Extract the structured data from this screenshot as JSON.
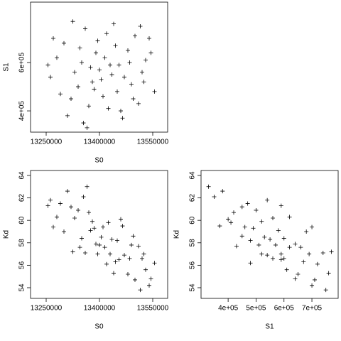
{
  "chart_data": [
    {
      "type": "scatter",
      "x_label": "S0",
      "y_label": "S1",
      "x": [
        13262000,
        13300000,
        13320000,
        13350000,
        13380000,
        13400000,
        13420000,
        13450000,
        13480000,
        13520000,
        13540000,
        13280000,
        13310000,
        13340000,
        13360000,
        13370000,
        13390000,
        13410000,
        13430000,
        13440000,
        13460000,
        13470000,
        13490000,
        13500000,
        13510000,
        13530000,
        13555000,
        13270000,
        13290000,
        13330000,
        13345000,
        13355000,
        13375000,
        13385000,
        13395000,
        13405000,
        13415000,
        13425000,
        13435000,
        13445000,
        13455000,
        13465000,
        13485000,
        13495000,
        13515000,
        13525000,
        13365000,
        13325000,
        13545000,
        13255000
      ],
      "y": [
        540000,
        680000,
        450000,
        600000,
        520000,
        570000,
        720000,
        480000,
        650000,
        560000,
        700000,
        620000,
        380000,
        500000,
        740000,
        420000,
        640000,
        460000,
        590000,
        760000,
        400000,
        540000,
        510000,
        710000,
        430000,
        610000,
        480000,
        700000,
        470000,
        560000,
        660000,
        350000,
        580000,
        490000,
        690000,
        530000,
        620000,
        410000,
        550000,
        670000,
        590000,
        370000,
        600000,
        450000,
        750000,
        520000,
        330000,
        770000,
        640000,
        590000
      ],
      "xlim": [
        13206000,
        13592000
      ],
      "ylim": [
        312000,
        850000
      ],
      "xticks": [
        13250000,
        13400000,
        13550000
      ],
      "yticks": [
        {
          "value": 400000,
          "label": "4e+05"
        },
        {
          "value": 600000,
          "label": "6e+05"
        }
      ]
    },
    {
      "type": "scatter",
      "x_label": "S0",
      "y_label": "Kd",
      "x": [
        13262000,
        13300000,
        13320000,
        13350000,
        13380000,
        13400000,
        13420000,
        13450000,
        13480000,
        13520000,
        13540000,
        13280000,
        13310000,
        13340000,
        13360000,
        13370000,
        13390000,
        13410000,
        13430000,
        13440000,
        13460000,
        13470000,
        13490000,
        13500000,
        13510000,
        13530000,
        13555000,
        13270000,
        13290000,
        13330000,
        13345000,
        13355000,
        13375000,
        13385000,
        13395000,
        13405000,
        13415000,
        13425000,
        13435000,
        13445000,
        13455000,
        13465000,
        13485000,
        13495000,
        13515000,
        13525000,
        13365000,
        13325000,
        13545000,
        13255000
      ],
      "y": [
        61.8,
        59.0,
        61.2,
        58.4,
        59.9,
        57.8,
        56.1,
        58.2,
        55.2,
        56.6,
        54.2,
        60.3,
        62.6,
        60.9,
        57.1,
        60.7,
        57.9,
        59.4,
        57.0,
        55.3,
        60.1,
        56.9,
        57.8,
        54.7,
        57.7,
        55.6,
        56.2,
        59.4,
        61.5,
        60.2,
        57.6,
        62.1,
        59.1,
        59.3,
        57.0,
        58.5,
        57.6,
        59.8,
        58.3,
        56.3,
        56.5,
        59.5,
        56.6,
        58.6,
        53.8,
        57.0,
        63.0,
        57.2,
        54.8,
        61.3
      ],
      "xlim": [
        13206000,
        13592000
      ],
      "ylim": [
        53.05,
        64.44
      ],
      "xticks": [
        13250000,
        13400000,
        13550000
      ],
      "yticks": [
        54,
        56,
        58,
        60,
        62,
        64
      ]
    },
    {
      "type": "scatter",
      "x_label": "S1",
      "y_label": "Kd",
      "x": [
        540000,
        680000,
        450000,
        600000,
        520000,
        570000,
        720000,
        480000,
        650000,
        560000,
        700000,
        620000,
        380000,
        500000,
        740000,
        420000,
        640000,
        460000,
        590000,
        760000,
        400000,
        540000,
        510000,
        710000,
        430000,
        610000,
        480000,
        700000,
        470000,
        560000,
        660000,
        350000,
        580000,
        490000,
        690000,
        530000,
        620000,
        410000,
        550000,
        670000,
        590000,
        370000,
        600000,
        450000,
        750000,
        520000,
        330000,
        770000,
        640000,
        590000
      ],
      "y": [
        61.8,
        59.0,
        61.2,
        58.4,
        59.9,
        57.8,
        56.1,
        58.2,
        55.2,
        56.6,
        54.2,
        60.3,
        62.6,
        60.9,
        57.1,
        60.7,
        57.9,
        59.4,
        57.0,
        55.3,
        60.1,
        56.9,
        57.8,
        54.7,
        57.7,
        55.6,
        56.2,
        59.4,
        61.5,
        60.2,
        57.6,
        62.1,
        59.1,
        59.3,
        57.0,
        58.5,
        57.6,
        59.8,
        58.3,
        56.3,
        56.5,
        59.5,
        56.6,
        58.6,
        53.8,
        57.0,
        63.0,
        57.2,
        54.8,
        61.3
      ],
      "xlim": [
        303000,
        794000
      ],
      "ylim": [
        53.05,
        64.44
      ],
      "xticks": [
        {
          "value": 400000,
          "label": "4e+05"
        },
        {
          "value": 500000,
          "label": "5e+05"
        },
        {
          "value": 600000,
          "label": "6e+05"
        },
        {
          "value": 700000,
          "label": "7e+05"
        }
      ],
      "yticks": [
        54,
        56,
        58,
        60,
        62,
        64
      ]
    }
  ]
}
